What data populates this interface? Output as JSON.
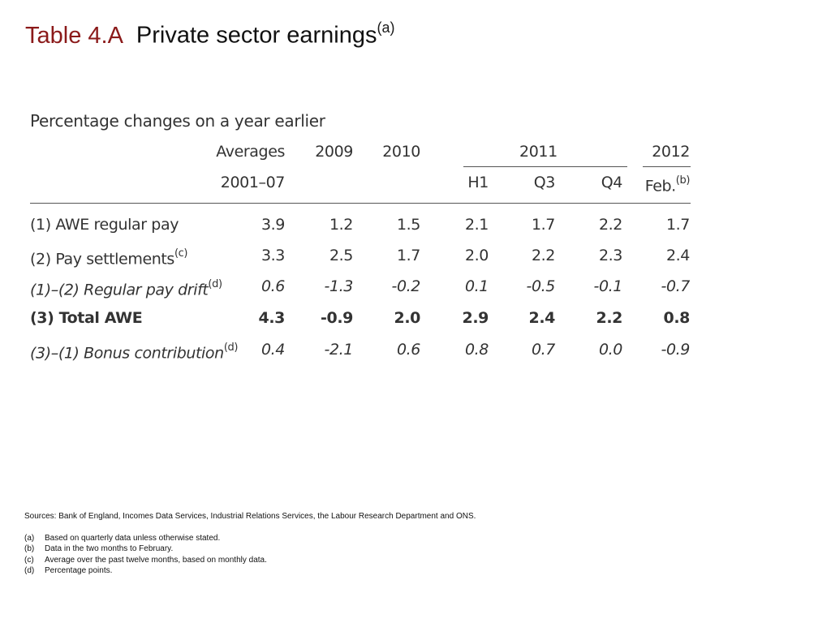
{
  "title": {
    "number": "Table 4.A",
    "text": "Private sector earnings",
    "sup": "(a)"
  },
  "table": {
    "subtitle": "Percentage changes on a year earlier",
    "header1": [
      "Averages",
      "2009",
      "2010",
      "2011",
      "2012"
    ],
    "header2": [
      "2001–07",
      "H1",
      "Q3",
      "Q4",
      "Feb."
    ],
    "header2_sup": "(b)",
    "rows": [
      {
        "label": "(1) AWE regular pay",
        "sup": "",
        "values": [
          "3.9",
          "1.2",
          "1.5",
          "2.1",
          "1.7",
          "2.2",
          "1.7"
        ]
      },
      {
        "label": "(2) Pay settlements",
        "sup": "(c)",
        "values": [
          "3.3",
          "2.5",
          "1.7",
          "2.0",
          "2.2",
          "2.3",
          "2.4"
        ]
      },
      {
        "label": "(1)–(2) Regular pay drift",
        "sup": "(d)",
        "values": [
          "0.6",
          "-1.3",
          "-0.2",
          "0.1",
          "-0.5",
          "-0.1",
          "-0.7"
        ]
      },
      {
        "label": "(3) Total AWE",
        "sup": "",
        "values": [
          "4.3",
          "-0.9",
          "2.0",
          "2.9",
          "2.4",
          "2.2",
          "0.8"
        ]
      },
      {
        "label": "(3)–(1) Bonus contribution",
        "sup": "(d)",
        "values": [
          "0.4",
          "-2.1",
          "0.6",
          "0.8",
          "0.7",
          "0.0",
          "-0.9"
        ]
      }
    ]
  },
  "notes": {
    "sources": "Sources:  Bank of England, Incomes Data Services, Industrial Relations Services, the Labour Research Department and ONS.",
    "footnotes": [
      {
        "key": "(a)",
        "text": "Based on quarterly data unless otherwise stated."
      },
      {
        "key": "(b)",
        "text": "Data in the two months to February."
      },
      {
        "key": "(c)",
        "text": "Average over the past twelve months, based on monthly data."
      },
      {
        "key": "(d)",
        "text": "Percentage points."
      }
    ]
  }
}
